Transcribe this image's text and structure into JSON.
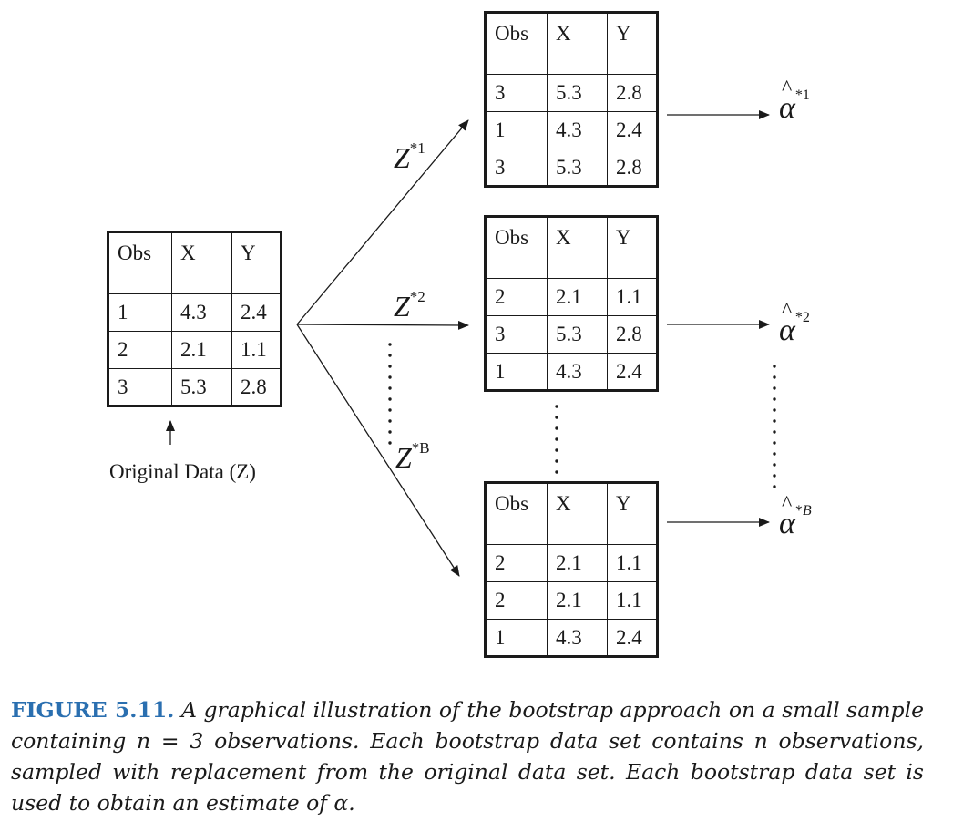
{
  "original": {
    "headers": [
      "Obs",
      "X",
      "Y"
    ],
    "rows": [
      [
        "1",
        "4.3",
        "2.4"
      ],
      [
        "2",
        "2.1",
        "1.1"
      ],
      [
        "3",
        "5.3",
        "2.8"
      ]
    ],
    "label": "Original Data (Z)"
  },
  "bootstrap_sets": [
    {
      "z_base": "Z",
      "z_sup": "*1",
      "alpha_base": "α",
      "alpha_sup_pre": "*",
      "alpha_sup_idx": "1",
      "headers": [
        "Obs",
        "X",
        "Y"
      ],
      "rows": [
        [
          "3",
          "5.3",
          "2.8"
        ],
        [
          "1",
          "4.3",
          "2.4"
        ],
        [
          "3",
          "5.3",
          "2.8"
        ]
      ]
    },
    {
      "z_base": "Z",
      "z_sup": "*2",
      "alpha_base": "α",
      "alpha_sup_pre": "*",
      "alpha_sup_idx": "2",
      "headers": [
        "Obs",
        "X",
        "Y"
      ],
      "rows": [
        [
          "2",
          "2.1",
          "1.1"
        ],
        [
          "3",
          "5.3",
          "2.8"
        ],
        [
          "1",
          "4.3",
          "2.4"
        ]
      ]
    },
    {
      "z_base": "Z",
      "z_sup": "*B",
      "alpha_base": "α",
      "alpha_sup_pre": "*",
      "alpha_sup_idx": "B",
      "headers": [
        "Obs",
        "X",
        "Y"
      ],
      "rows": [
        [
          "2",
          "2.1",
          "1.1"
        ],
        [
          "2",
          "2.1",
          "1.1"
        ],
        [
          "1",
          "4.3",
          "2.4"
        ]
      ]
    }
  ],
  "caption": {
    "figure_label": "FIGURE 5.11.",
    "text": "A graphical illustration of the bootstrap approach on a small sample containing n = 3 observations. Each bootstrap data set contains n observations, sampled with replacement from the original data set. Each bootstrap data set is used to obtain an estimate of α."
  }
}
